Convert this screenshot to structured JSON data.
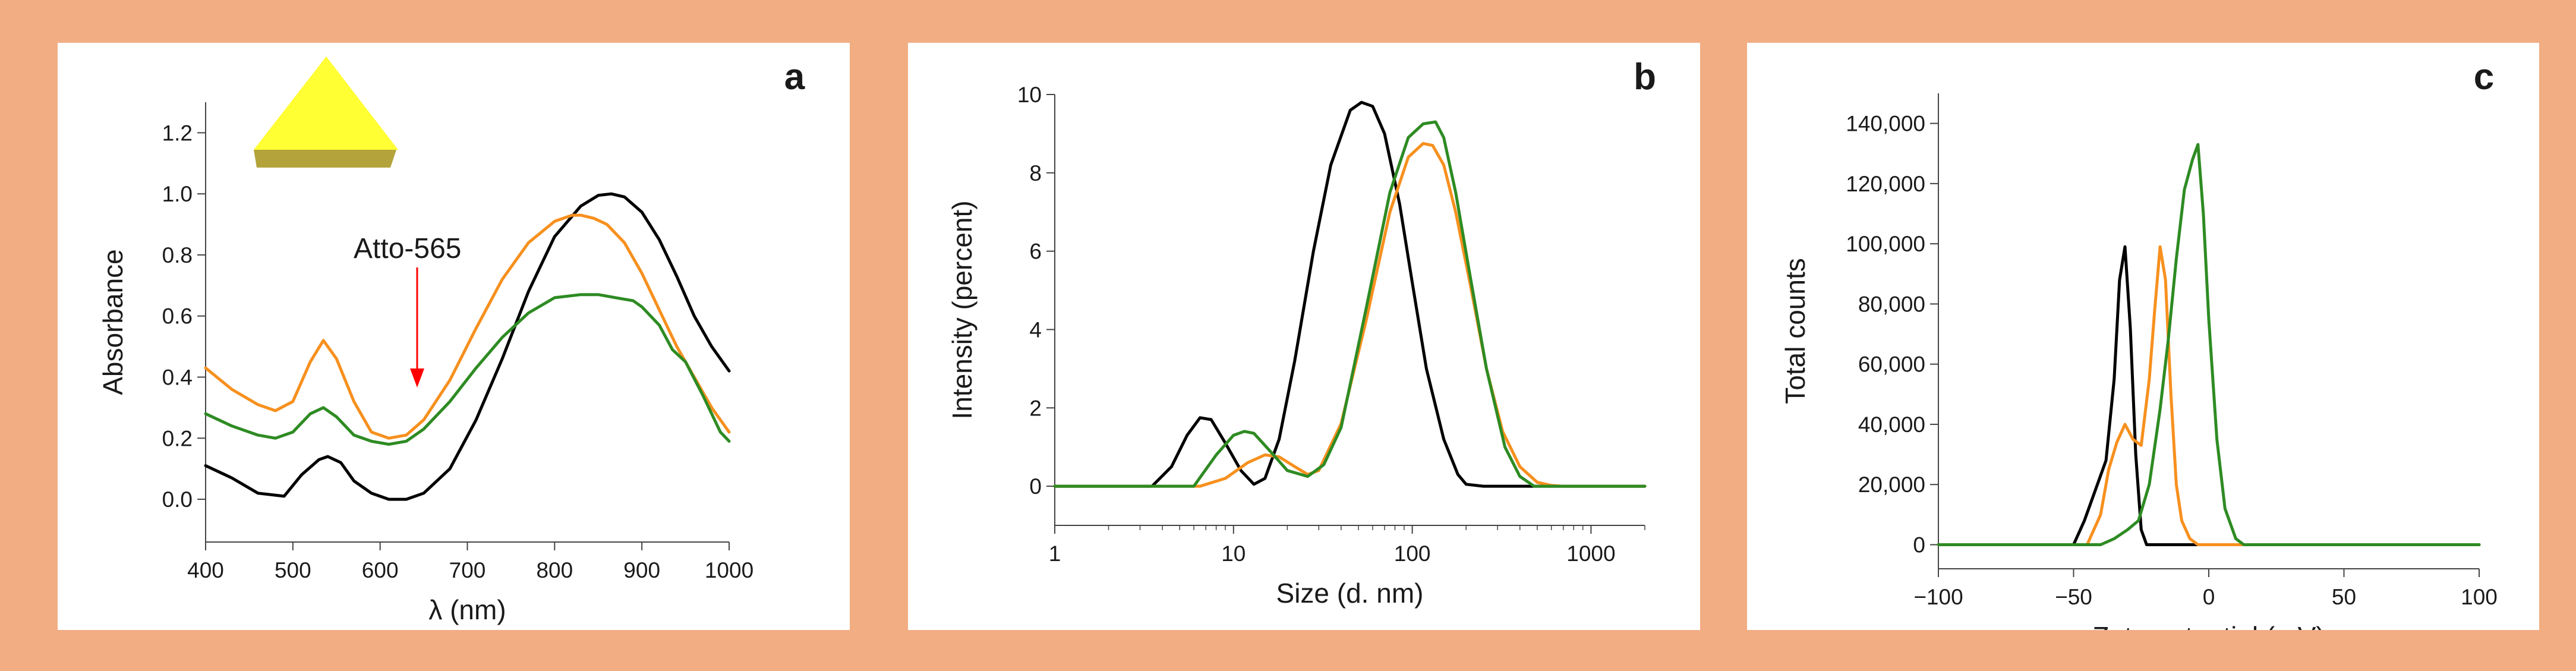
{
  "chart_data": [
    {
      "type": "line",
      "panel": "a",
      "xlabel": "λ (nm)",
      "ylabel": "Absorbance",
      "xlim": [
        400,
        1000
      ],
      "ylim": [
        -0.14,
        1.3
      ],
      "xticks": [
        400,
        500,
        600,
        700,
        800,
        900,
        1000
      ],
      "yticks": [
        0.0,
        0.2,
        0.4,
        0.6,
        0.8,
        1.0,
        1.2
      ],
      "xtick_labels": [
        "400",
        "500",
        "600",
        "700",
        "800",
        "900",
        "1000"
      ],
      "ytick_labels": [
        "0.0",
        "0.2",
        "0.4",
        "0.6",
        "0.8",
        "1.0",
        "1.2"
      ],
      "annotation": {
        "text": "Atto-565",
        "x": 580,
        "y": 0.37
      },
      "series": [
        {
          "name": "black",
          "color": "#000000",
          "x": [
            400,
            430,
            460,
            490,
            510,
            530,
            540,
            555,
            570,
            590,
            610,
            630,
            650,
            680,
            710,
            740,
            770,
            800,
            830,
            850,
            865,
            880,
            900,
            920,
            940,
            960,
            980,
            1000
          ],
          "y": [
            0.11,
            0.07,
            0.02,
            0.01,
            0.08,
            0.13,
            0.14,
            0.12,
            0.06,
            0.02,
            0.0,
            0.0,
            0.02,
            0.1,
            0.26,
            0.46,
            0.68,
            0.86,
            0.96,
            0.995,
            1.0,
            0.99,
            0.94,
            0.85,
            0.73,
            0.6,
            0.5,
            0.42
          ]
        },
        {
          "name": "orange",
          "color": "#f7901e",
          "x": [
            400,
            430,
            460,
            480,
            500,
            520,
            535,
            550,
            570,
            590,
            610,
            630,
            650,
            680,
            710,
            740,
            770,
            800,
            820,
            830,
            845,
            860,
            880,
            900,
            920,
            940,
            960,
            980,
            1000
          ],
          "y": [
            0.43,
            0.36,
            0.31,
            0.29,
            0.32,
            0.45,
            0.52,
            0.46,
            0.32,
            0.22,
            0.2,
            0.21,
            0.26,
            0.39,
            0.56,
            0.72,
            0.84,
            0.91,
            0.93,
            0.93,
            0.92,
            0.9,
            0.84,
            0.74,
            0.62,
            0.5,
            0.4,
            0.3,
            0.22
          ]
        },
        {
          "name": "green",
          "color": "#2e8b23",
          "x": [
            400,
            430,
            460,
            480,
            500,
            520,
            535,
            550,
            570,
            590,
            610,
            630,
            650,
            680,
            710,
            740,
            770,
            800,
            830,
            850,
            870,
            890,
            900,
            920,
            935,
            950,
            970,
            990,
            1000
          ],
          "y": [
            0.28,
            0.24,
            0.21,
            0.2,
            0.22,
            0.28,
            0.3,
            0.27,
            0.21,
            0.19,
            0.18,
            0.19,
            0.23,
            0.32,
            0.43,
            0.53,
            0.61,
            0.66,
            0.67,
            0.67,
            0.66,
            0.65,
            0.63,
            0.57,
            0.49,
            0.45,
            0.34,
            0.22,
            0.19
          ]
        }
      ]
    },
    {
      "type": "line",
      "panel": "b",
      "xscale": "log",
      "xlabel": "Size (d. nm)",
      "ylabel": "Intensity (percent)",
      "xlim": [
        1,
        2000
      ],
      "ylim": [
        -1,
        10
      ],
      "xticks": [
        1,
        10,
        100,
        1000
      ],
      "yticks": [
        0,
        2,
        4,
        6,
        8,
        10
      ],
      "xtick_labels": [
        "1",
        "10",
        "100",
        "1000"
      ],
      "ytick_labels": [
        "0",
        "2",
        "4",
        "6",
        "8",
        "10"
      ],
      "series": [
        {
          "name": "black",
          "color": "#000000",
          "x": [
            1,
            3.5,
            4.5,
            5.5,
            6.5,
            7.5,
            9,
            11,
            13,
            15,
            18,
            22,
            28,
            35,
            45,
            52,
            60,
            70,
            85,
            100,
            120,
            150,
            180,
            200,
            250,
            300,
            2000
          ],
          "y": [
            0,
            0,
            0.5,
            1.3,
            1.75,
            1.7,
            1.1,
            0.4,
            0.05,
            0.2,
            1.2,
            3.2,
            6,
            8.2,
            9.6,
            9.8,
            9.7,
            9.0,
            7.2,
            5.2,
            3.0,
            1.2,
            0.3,
            0.05,
            0,
            0,
            0
          ]
        },
        {
          "name": "orange",
          "color": "#f7901e",
          "x": [
            1,
            6.5,
            9,
            12,
            15,
            18,
            22,
            26,
            30,
            40,
            55,
            75,
            95,
            115,
            130,
            150,
            175,
            210,
            260,
            320,
            400,
            500,
            600,
            700,
            2000
          ],
          "y": [
            0,
            0,
            0.2,
            0.6,
            0.8,
            0.75,
            0.5,
            0.3,
            0.4,
            1.6,
            4.2,
            7.0,
            8.4,
            8.75,
            8.7,
            8.2,
            7.0,
            5.2,
            3.0,
            1.4,
            0.5,
            0.1,
            0.02,
            0,
            0
          ]
        },
        {
          "name": "green",
          "color": "#2e8b23",
          "x": [
            1,
            6,
            8,
            10,
            11.5,
            13,
            16,
            20,
            26,
            32,
            40,
            55,
            75,
            95,
            115,
            135,
            150,
            175,
            210,
            260,
            330,
            400,
            480,
            2000
          ],
          "y": [
            0,
            0,
            0.8,
            1.3,
            1.4,
            1.35,
            0.9,
            0.4,
            0.25,
            0.55,
            1.5,
            4.5,
            7.5,
            8.9,
            9.25,
            9.3,
            8.9,
            7.5,
            5.4,
            3.0,
            1.0,
            0.25,
            0,
            0
          ]
        }
      ]
    },
    {
      "type": "line",
      "panel": "c",
      "xlabel": "Zeta potential (mV)",
      "ylabel": "Total counts",
      "xlim": [
        -100,
        100
      ],
      "ylim": [
        -8000,
        150000
      ],
      "xticks": [
        -100,
        -50,
        0,
        50,
        100
      ],
      "yticks": [
        0,
        20000,
        40000,
        60000,
        80000,
        100000,
        120000,
        140000
      ],
      "xtick_labels": [
        "−100",
        "−50",
        "0",
        "50",
        "100"
      ],
      "ytick_labels": [
        "0",
        "20,000",
        "40,000",
        "60,000",
        "80,000",
        "100,000",
        "120,000",
        "140,000"
      ],
      "series": [
        {
          "name": "black",
          "color": "#000000",
          "x": [
            -100,
            -50,
            -46,
            -42,
            -38,
            -35,
            -33,
            -31,
            -29,
            -27,
            -25,
            -23,
            100
          ],
          "y": [
            0,
            0,
            8000,
            18000,
            28000,
            55000,
            88000,
            99000,
            72000,
            30000,
            5000,
            0,
            0
          ]
        },
        {
          "name": "orange",
          "color": "#f7901e",
          "x": [
            -100,
            -45,
            -40,
            -37,
            -34,
            -31,
            -28,
            -25,
            -22,
            -20,
            -18,
            -16,
            -14,
            -12,
            -10,
            -7,
            -4,
            100
          ],
          "y": [
            0,
            0,
            10000,
            25000,
            34000,
            40000,
            35000,
            33000,
            55000,
            78000,
            99000,
            88000,
            50000,
            20000,
            8000,
            2000,
            0,
            0
          ]
        },
        {
          "name": "green",
          "color": "#2e8b23",
          "x": [
            -100,
            -40,
            -35,
            -30,
            -26,
            -22,
            -18,
            -15,
            -12,
            -9,
            -6,
            -4,
            -2,
            0,
            3,
            6,
            10,
            13,
            100
          ],
          "y": [
            0,
            0,
            2000,
            5000,
            8000,
            20000,
            45000,
            68000,
            95000,
            118000,
            128000,
            133000,
            110000,
            75000,
            35000,
            12000,
            2000,
            0,
            0
          ]
        }
      ]
    }
  ],
  "panels": {
    "a": {
      "letter": "a"
    },
    "b": {
      "letter": "b"
    },
    "c": {
      "letter": "c"
    }
  },
  "colors": {
    "background": "#f2ad82",
    "panel": "#ffffff",
    "arrow": "#ff0000",
    "triangle_top": "#ffff33",
    "triangle_side": "#b3a33a"
  }
}
